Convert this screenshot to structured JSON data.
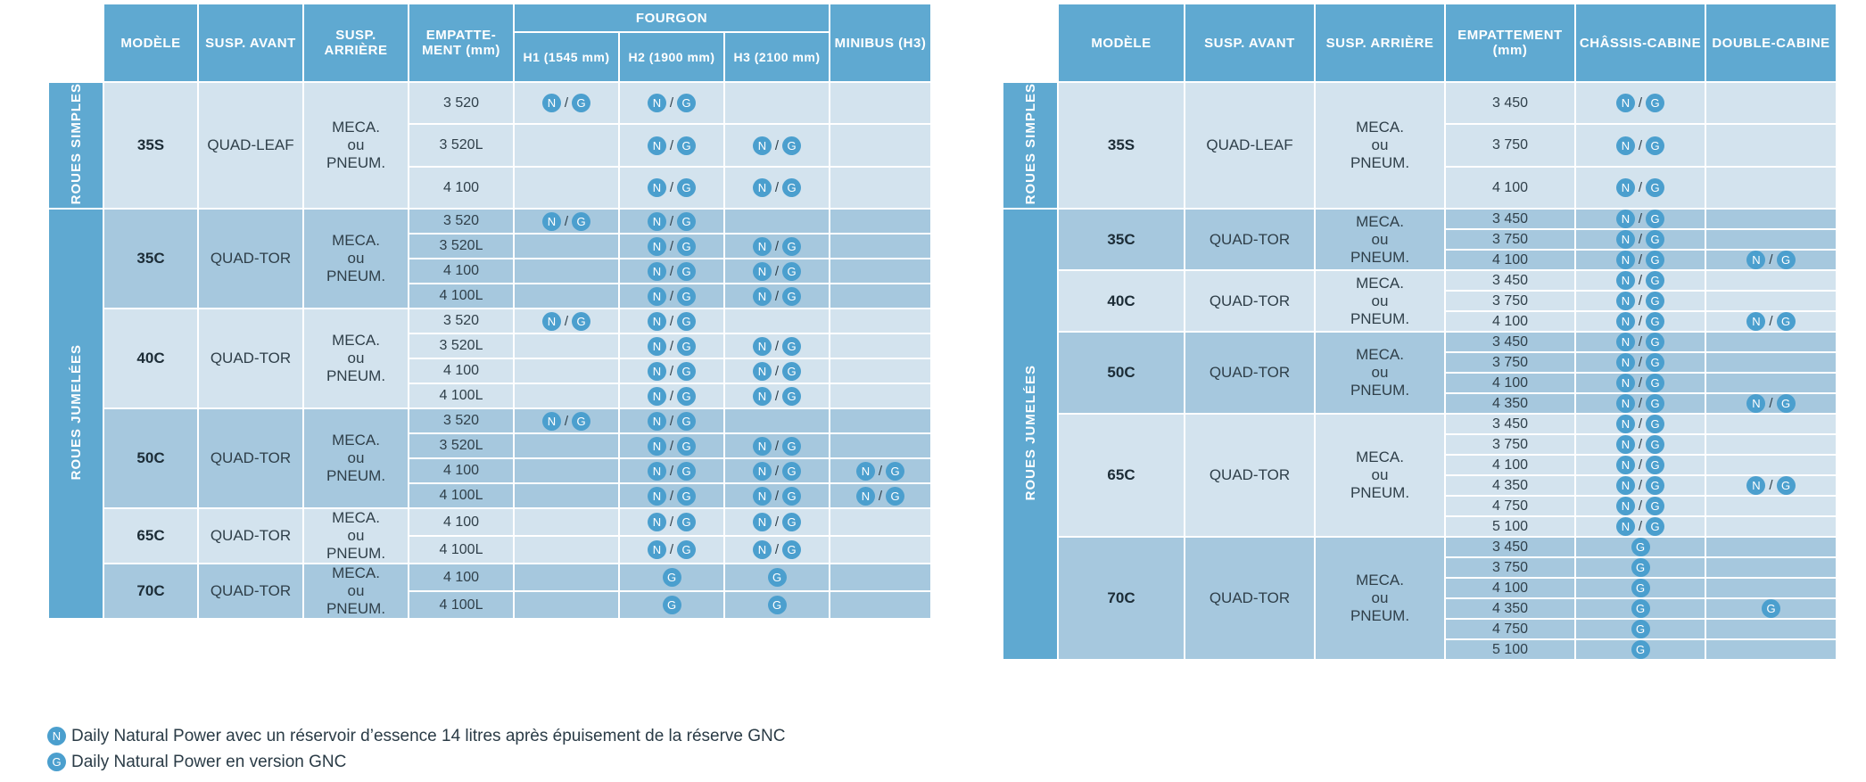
{
  "left": {
    "headers": {
      "model": "MODÈLE",
      "susp_front": "SUSP. AVANT",
      "susp_rear": "SUSP. ARRIÈRE",
      "wheelbase": "EMPATTE- MENT (mm)",
      "fourgon": "FOURGON",
      "h1": "H1 (1545 mm)",
      "h2": "H2 (1900 mm)",
      "h3": "H3 (2100 mm)",
      "minibus": "MINIBUS (H3)"
    },
    "side_simple": "ROUES SIMPLES",
    "side_jumelees": "ROUES JUMELÉES",
    "groups": [
      {
        "model": "35S",
        "front": "QUAD-LEAF",
        "rear": [
          "MECA.",
          "ou",
          "PNEUM."
        ],
        "rows": [
          {
            "wb": "3 520",
            "h1": "NG",
            "h2": "NG",
            "h3": "",
            "mb": ""
          },
          {
            "wb": "3 520L",
            "h1": "",
            "h2": "NG",
            "h3": "NG",
            "mb": ""
          },
          {
            "wb": "4 100",
            "h1": "",
            "h2": "NG",
            "h3": "NG",
            "mb": ""
          }
        ]
      },
      {
        "model": "35C",
        "front": "QUAD-TOR",
        "rear": [
          "MECA.",
          "ou",
          "PNEUM."
        ],
        "rows": [
          {
            "wb": "3 520",
            "h1": "NG",
            "h2": "NG",
            "h3": "",
            "mb": ""
          },
          {
            "wb": "3 520L",
            "h1": "",
            "h2": "NG",
            "h3": "NG",
            "mb": ""
          },
          {
            "wb": "4 100",
            "h1": "",
            "h2": "NG",
            "h3": "NG",
            "mb": ""
          },
          {
            "wb": "4 100L",
            "h1": "",
            "h2": "NG",
            "h3": "NG",
            "mb": ""
          }
        ]
      },
      {
        "model": "40C",
        "front": "QUAD-TOR",
        "rear": [
          "MECA.",
          "ou",
          "PNEUM."
        ],
        "rows": [
          {
            "wb": "3 520",
            "h1": "NG",
            "h2": "NG",
            "h3": "",
            "mb": ""
          },
          {
            "wb": "3 520L",
            "h1": "",
            "h2": "NG",
            "h3": "NG",
            "mb": ""
          },
          {
            "wb": "4 100",
            "h1": "",
            "h2": "NG",
            "h3": "NG",
            "mb": ""
          },
          {
            "wb": "4 100L",
            "h1": "",
            "h2": "NG",
            "h3": "NG",
            "mb": ""
          }
        ]
      },
      {
        "model": "50C",
        "front": "QUAD-TOR",
        "rear": [
          "MECA.",
          "ou",
          "PNEUM."
        ],
        "rows": [
          {
            "wb": "3 520",
            "h1": "NG",
            "h2": "NG",
            "h3": "",
            "mb": ""
          },
          {
            "wb": "3 520L",
            "h1": "",
            "h2": "NG",
            "h3": "NG",
            "mb": ""
          },
          {
            "wb": "4 100",
            "h1": "",
            "h2": "NG",
            "h3": "NG",
            "mb": "NG"
          },
          {
            "wb": "4 100L",
            "h1": "",
            "h2": "NG",
            "h3": "NG",
            "mb": "NG"
          }
        ]
      },
      {
        "model": "65C",
        "front": "QUAD-TOR",
        "rear": [
          "MECA.",
          "ou",
          "PNEUM."
        ],
        "rows": [
          {
            "wb": "4 100",
            "h1": "",
            "h2": "NG",
            "h3": "NG",
            "mb": ""
          },
          {
            "wb": "4 100L",
            "h1": "",
            "h2": "NG",
            "h3": "NG",
            "mb": ""
          }
        ]
      },
      {
        "model": "70C",
        "front": "QUAD-TOR",
        "rear": [
          "MECA.",
          "ou",
          "PNEUM."
        ],
        "rows": [
          {
            "wb": "4 100",
            "h1": "",
            "h2": "G",
            "h3": "G",
            "mb": ""
          },
          {
            "wb": "4 100L",
            "h1": "",
            "h2": "G",
            "h3": "G",
            "mb": ""
          }
        ]
      }
    ]
  },
  "right": {
    "headers": {
      "model": "MODÈLE",
      "susp_front": "SUSP. AVANT",
      "susp_rear": "SUSP. ARRIÈRE",
      "wheelbase": "EMPATTEMENT (mm)",
      "chassis": "CHÂSSIS-CABINE",
      "double": "DOUBLE-CABINE"
    },
    "side_simple": "ROUES SIMPLES",
    "side_jumelees": "ROUES JUMELÉES",
    "groups": [
      {
        "model": "35S",
        "front": "QUAD-LEAF",
        "rear": [
          "MECA.",
          "ou",
          "PNEUM."
        ],
        "rows": [
          {
            "wb": "3 450",
            "cc": "NG",
            "dc": ""
          },
          {
            "wb": "3 750",
            "cc": "NG",
            "dc": ""
          },
          {
            "wb": "4 100",
            "cc": "NG",
            "dc": ""
          }
        ]
      },
      {
        "model": "35C",
        "front": "QUAD-TOR",
        "rear": [
          "MECA.",
          "ou",
          "PNEUM."
        ],
        "rows": [
          {
            "wb": "3 450",
            "cc": "NG",
            "dc": ""
          },
          {
            "wb": "3 750",
            "cc": "NG",
            "dc": ""
          },
          {
            "wb": "4 100",
            "cc": "NG",
            "dc": "NG"
          }
        ]
      },
      {
        "model": "40C",
        "front": "QUAD-TOR",
        "rear": [
          "MECA.",
          "ou",
          "PNEUM."
        ],
        "rows": [
          {
            "wb": "3 450",
            "cc": "NG",
            "dc": ""
          },
          {
            "wb": "3 750",
            "cc": "NG",
            "dc": ""
          },
          {
            "wb": "4 100",
            "cc": "NG",
            "dc": "NG"
          }
        ]
      },
      {
        "model": "50C",
        "front": "QUAD-TOR",
        "rear": [
          "MECA.",
          "ou",
          "PNEUM."
        ],
        "rows": [
          {
            "wb": "3 450",
            "cc": "NG",
            "dc": ""
          },
          {
            "wb": "3 750",
            "cc": "NG",
            "dc": ""
          },
          {
            "wb": "4 100",
            "cc": "NG",
            "dc": ""
          },
          {
            "wb": "4 350",
            "cc": "NG",
            "dc": "NG"
          }
        ]
      },
      {
        "model": "65C",
        "front": "QUAD-TOR",
        "rear": [
          "MECA.",
          "ou",
          "PNEUM."
        ],
        "rows": [
          {
            "wb": "3 450",
            "cc": "NG",
            "dc": ""
          },
          {
            "wb": "3 750",
            "cc": "NG",
            "dc": ""
          },
          {
            "wb": "4 100",
            "cc": "NG",
            "dc": ""
          },
          {
            "wb": "4 350",
            "cc": "NG",
            "dc": "NG"
          },
          {
            "wb": "4 750",
            "cc": "NG",
            "dc": ""
          },
          {
            "wb": "5 100",
            "cc": "NG",
            "dc": ""
          }
        ]
      },
      {
        "model": "70C",
        "front": "QUAD-TOR",
        "rear": [
          "MECA.",
          "ou",
          "PNEUM."
        ],
        "rows": [
          {
            "wb": "3 450",
            "cc": "G",
            "dc": ""
          },
          {
            "wb": "3 750",
            "cc": "G",
            "dc": ""
          },
          {
            "wb": "4 100",
            "cc": "G",
            "dc": ""
          },
          {
            "wb": "4 350",
            "cc": "G",
            "dc": "G"
          },
          {
            "wb": "4 750",
            "cc": "G",
            "dc": ""
          },
          {
            "wb": "5 100",
            "cc": "G",
            "dc": ""
          }
        ]
      }
    ]
  },
  "icons": {
    "n_letter": "N",
    "g_letter": "G",
    "separator": "/",
    "color": "#4b9fce"
  },
  "legend": [
    {
      "letter": "N",
      "text": "Daily Natural Power avec un réservoir d’essence 14 litres après épuisement de la réserve GNC"
    },
    {
      "letter": "G",
      "text": "Daily Natural Power en version GNC"
    }
  ],
  "colors": {
    "header": "#5fa9d1",
    "row_light": "#d3e3ee",
    "row_dark": "#a6c8de",
    "icon": "#4b9fce"
  }
}
